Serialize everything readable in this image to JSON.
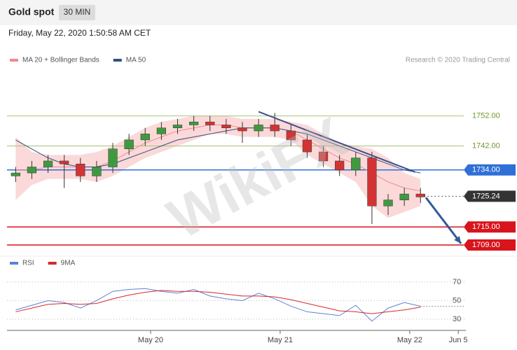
{
  "header": {
    "title": "Gold spot",
    "interval": "30 MIN",
    "timestamp": "Friday, May 22, 2020 1:50:58 AM CET",
    "source": "Research © 2020 Trading Central"
  },
  "watermark": "WikiFX",
  "chart_data": [
    {
      "type": "candlestick",
      "x": [
        -25,
        -22,
        -19,
        -16,
        -13,
        -10,
        -7,
        -4,
        -1,
        2,
        5,
        8,
        11,
        14,
        17,
        20,
        23,
        26,
        29,
        32,
        35,
        38,
        41,
        44,
        47,
        50
      ],
      "open": [
        1732,
        1733,
        1735,
        1737,
        1736,
        1732,
        1735,
        1741,
        1744,
        1746,
        1748,
        1749,
        1750,
        1749,
        1748,
        1747,
        1749,
        1747,
        1744,
        1740,
        1737,
        1734,
        1738,
        1722,
        1724,
        1726
      ],
      "high": [
        1735,
        1737,
        1739,
        1739,
        1738,
        1737,
        1743,
        1746,
        1748,
        1750,
        1751,
        1752,
        1752,
        1751,
        1750,
        1751,
        1753,
        1749,
        1746,
        1742,
        1739,
        1740,
        1740,
        1726,
        1728,
        1728
      ],
      "low": [
        1730,
        1731,
        1733,
        1728,
        1730,
        1730,
        1733,
        1739,
        1742,
        1744,
        1746,
        1747,
        1747,
        1746,
        1743,
        1745,
        1745,
        1742,
        1738,
        1735,
        1732,
        1732,
        1716,
        1719,
        1722,
        1723
      ],
      "close": [
        1733,
        1735,
        1737,
        1736,
        1732,
        1735,
        1741,
        1744,
        1746,
        1748,
        1749,
        1750,
        1749,
        1748,
        1747,
        1749,
        1747,
        1744,
        1740,
        1737,
        1734,
        1738,
        1722,
        1724,
        1726,
        1725
      ],
      "up_color": "#3f9a3f",
      "down_color": "#d23434",
      "series": [
        {
          "name": "MA 20 + Bollinger Bands",
          "color": "#f08a8a",
          "values": [
            1734,
            1734,
            1735,
            1735,
            1735,
            1735,
            1737,
            1740,
            1743,
            1745,
            1747,
            1748,
            1749,
            1749,
            1748,
            1748,
            1748,
            1747,
            1744,
            1741,
            1738,
            1736,
            1733,
            1730,
            1728,
            1727
          ]
        },
        {
          "name": "MA 50",
          "color": "#34507e",
          "values": [
            1744,
            1741,
            1738,
            1736,
            1735,
            1735,
            1736,
            1738,
            1740,
            1742,
            1744,
            1745,
            1746,
            1747,
            1748,
            1748,
            1748,
            1747,
            1746,
            1744,
            1742,
            1740,
            1738,
            1736,
            1734,
            1733
          ]
        }
      ],
      "bands": {
        "color": "#fbd9d9",
        "upper": [
          1745,
          1740,
          1739,
          1739,
          1739,
          1740,
          1742,
          1745,
          1748,
          1750,
          1751,
          1752,
          1752,
          1752,
          1751,
          1751,
          1751,
          1750,
          1749,
          1746,
          1743,
          1742,
          1741,
          1738,
          1733,
          1731
        ],
        "lower": [
          1724,
          1729,
          1731,
          1731,
          1731,
          1730,
          1732,
          1735,
          1738,
          1740,
          1742,
          1744,
          1746,
          1746,
          1745,
          1745,
          1745,
          1744,
          1739,
          1736,
          1733,
          1730,
          1722,
          1718,
          1720,
          1722
        ]
      },
      "levels": [
        {
          "value": 1752,
          "label": "1752.00",
          "color": "#a9c27a",
          "boxed": false
        },
        {
          "value": 1742,
          "label": "1742.00",
          "color": "#a9c27a",
          "boxed": false
        },
        {
          "value": 1734,
          "label": "1734.00",
          "color": "#2f6fd8",
          "boxed": true
        },
        {
          "value": 1725.24,
          "label": "1725.24",
          "color": "#333333",
          "boxed": true,
          "dashed": true
        },
        {
          "value": 1715,
          "label": "1715.00",
          "color": "#d8141c",
          "boxed": true
        },
        {
          "value": 1709,
          "label": "1709.00",
          "color": "#d8141c",
          "boxed": true
        }
      ],
      "trendline": {
        "x": [
          20,
          49
        ],
        "y": [
          1753.4,
          1733.3
        ],
        "color": "#3d4f8a"
      },
      "arrow": {
        "x": [
          51,
          57.5
        ],
        "y": [
          1724.8,
          1709.5
        ],
        "color": "#2f5a9a"
      },
      "xlim": [
        -26.6,
        58.4
      ],
      "ylim": [
        1706.2,
        1767.3
      ],
      "xticks": [
        {
          "value": 0,
          "label": "May 20"
        },
        {
          "value": 24,
          "label": "May 21"
        },
        {
          "value": 48,
          "label": "May 22"
        },
        {
          "value": 57,
          "label": "Jun 5"
        }
      ]
    },
    {
      "type": "line",
      "series": [
        {
          "name": "RSI",
          "color": "#5b82d8",
          "values": [
            40,
            45,
            50,
            48,
            42,
            50,
            60,
            62,
            63,
            60,
            58,
            62,
            55,
            52,
            50,
            58,
            52,
            44,
            38,
            36,
            34,
            45,
            28,
            42,
            48,
            44
          ]
        },
        {
          "name": "9MA",
          "color": "#d42a2a",
          "values": [
            38,
            42,
            46,
            47,
            46,
            47,
            52,
            56,
            59,
            61,
            60,
            60,
            59,
            57,
            55,
            55,
            54,
            51,
            47,
            43,
            39,
            38,
            36,
            38,
            40,
            43
          ]
        }
      ],
      "ylim": [
        19.5,
        83.5
      ],
      "yticks": [
        70,
        50,
        30
      ]
    }
  ]
}
